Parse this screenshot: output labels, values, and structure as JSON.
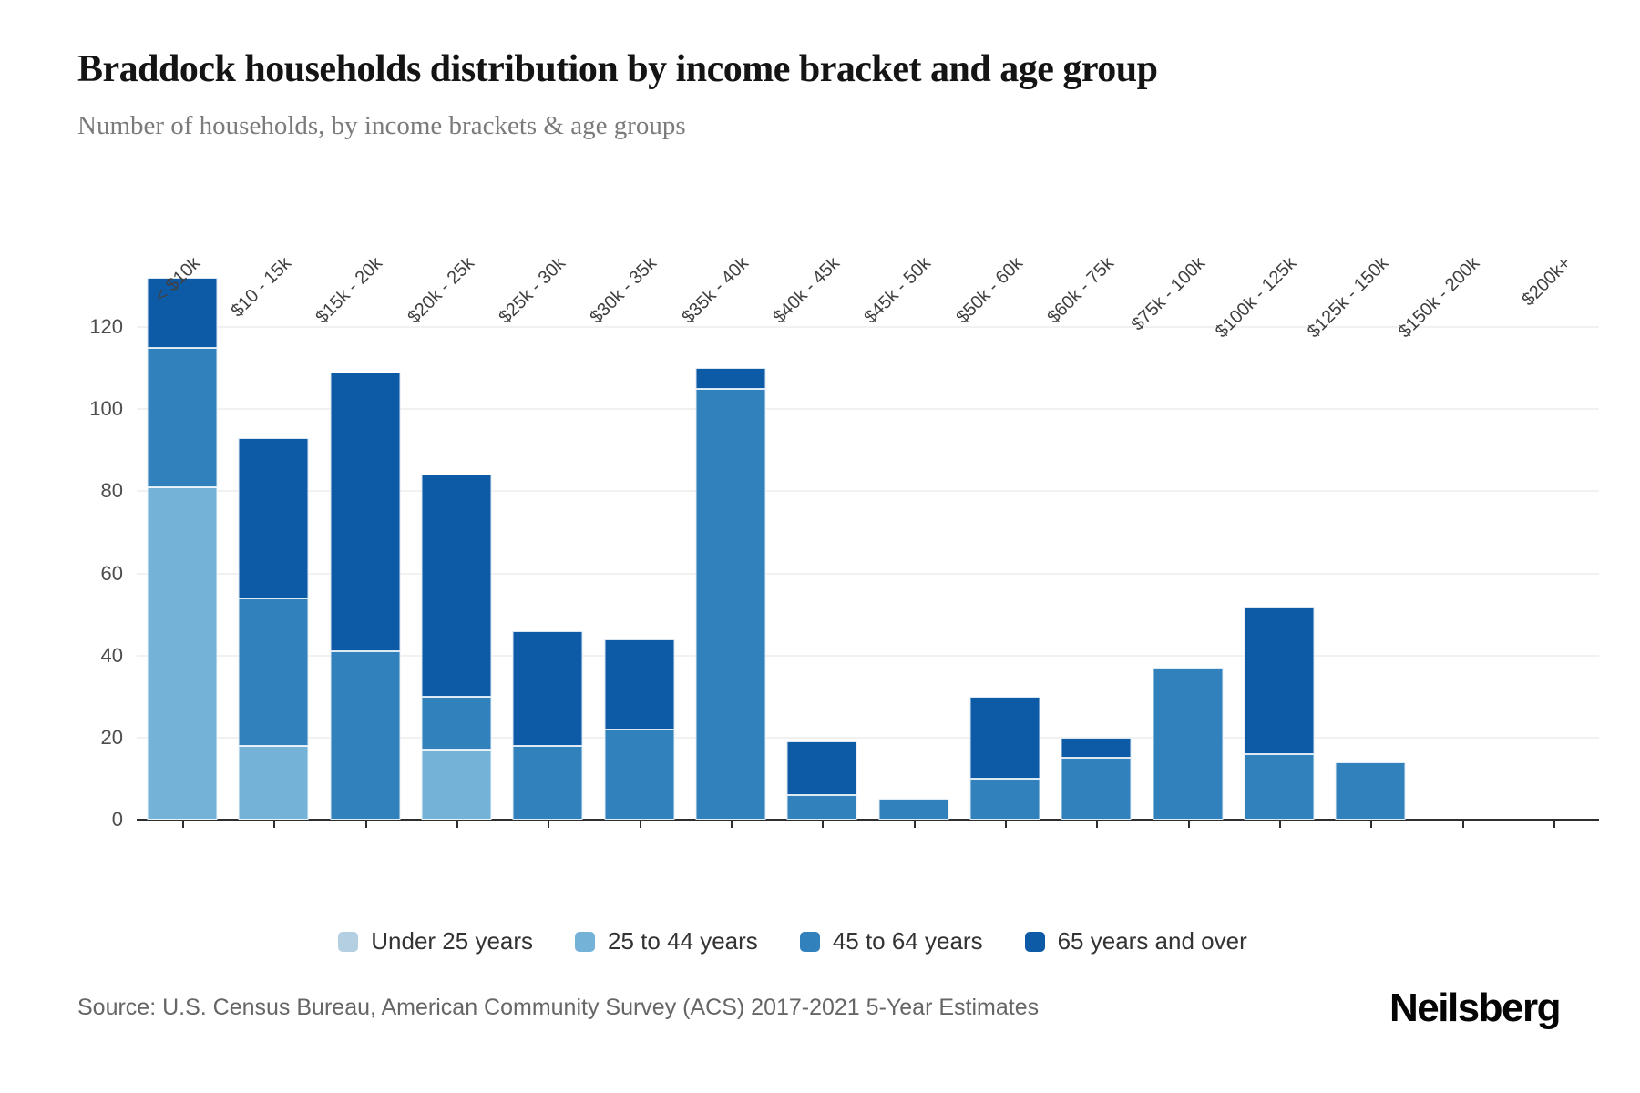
{
  "page": {
    "title": "Braddock households distribution by income bracket and age group",
    "subtitle": "Number of households, by income brackets & age groups",
    "source": "Source: U.S. Census Bureau, American Community Survey (ACS) 2017-2021 5-Year Estimates",
    "brand": "Neilsberg"
  },
  "chart_data": {
    "type": "bar",
    "stacked": true,
    "title": "Braddock households distribution by income bracket and age group",
    "subtitle": "Number of households, by income brackets & age groups",
    "categories": [
      "< $10k",
      "$10 - 15k",
      "$15k - 20k",
      "$20k - 25k",
      "$25k - 30k",
      "$30k - 35k",
      "$35k - 40k",
      "$40k - 45k",
      "$45k - 50k",
      "$50k - 60k",
      "$60k - 75k",
      "$75k - 100k",
      "$100k - 125k",
      "$125k - 150k",
      "$150k - 200k",
      "$200k+"
    ],
    "series": [
      {
        "name": "Under 25 years",
        "color": "#b5cfe2",
        "values": [
          0,
          0,
          0,
          0,
          0,
          0,
          0,
          0,
          0,
          0,
          0,
          0,
          0,
          0,
          0,
          0
        ]
      },
      {
        "name": "25 to 44 years",
        "color": "#74b2d8",
        "values": [
          81,
          18,
          0,
          17,
          0,
          0,
          0,
          0,
          0,
          0,
          0,
          0,
          0,
          0,
          0,
          0
        ]
      },
      {
        "name": "45 to 64 years",
        "color": "#3181bd",
        "values": [
          34,
          36,
          41,
          13,
          18,
          22,
          105,
          6,
          5,
          10,
          15,
          37,
          16,
          14,
          0,
          0
        ]
      },
      {
        "name": "65 years and over",
        "color": "#0d5aa7",
        "values": [
          17,
          39,
          68,
          54,
          28,
          22,
          5,
          13,
          0,
          20,
          5,
          0,
          36,
          0,
          0,
          0
        ]
      }
    ],
    "totals": [
      132,
      93,
      109,
      84,
      46,
      44,
      110,
      19,
      5,
      30,
      20,
      37,
      52,
      14,
      0,
      0
    ],
    "ylabel": "",
    "xlabel": "",
    "yticks": [
      0,
      20,
      40,
      60,
      80,
      100,
      120
    ],
    "ylim": [
      0,
      142
    ],
    "grid": true,
    "legend_position": "bottom",
    "axis_color": "#2e2e2e",
    "grid_color": "#f1f1f1"
  }
}
